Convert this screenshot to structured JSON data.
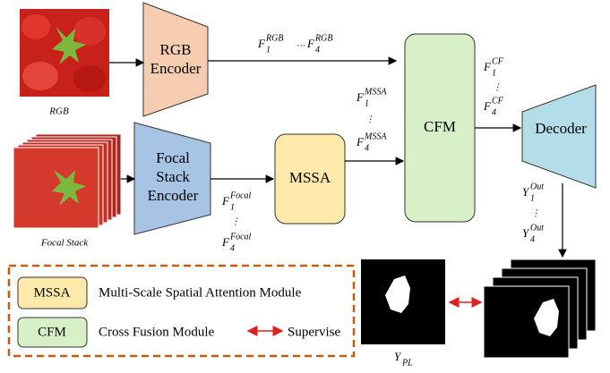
{
  "inputs": {
    "rgb_label": "RGB",
    "focal_label": "Focal Stack"
  },
  "nodes": {
    "rgb_encoder": [
      "RGB",
      "Encoder"
    ],
    "focal_encoder": [
      "Focal",
      "Stack",
      "Encoder"
    ],
    "mssa": "MSSA",
    "cfm": "CFM",
    "decoder": "Decoder"
  },
  "features": {
    "rgb": {
      "first": {
        "base": "F",
        "sub": "1",
        "sup": "RGB"
      },
      "ellipsis": "…",
      "last": {
        "base": "F",
        "sub": "4",
        "sup": "RGB"
      }
    },
    "focal": {
      "first": {
        "base": "F",
        "sub": "1",
        "sup": "Focal"
      },
      "ellipsis": "⋮",
      "last": {
        "base": "F",
        "sub": "4",
        "sup": "Focal"
      }
    },
    "mssa": {
      "first": {
        "base": "F",
        "sub": "1",
        "sup": "MSSA"
      },
      "ellipsis": "⋮",
      "last": {
        "base": "F",
        "sub": "4",
        "sup": "MSSA"
      }
    },
    "cf": {
      "first": {
        "base": "F",
        "sub": "1",
        "sup": "CF"
      },
      "ellipsis": "⋮",
      "last": {
        "base": "F",
        "sub": "4",
        "sup": "CF"
      }
    },
    "out": {
      "first": {
        "base": "Y",
        "sub": "1",
        "sup": "Out"
      },
      "ellipsis": "⋮",
      "last": {
        "base": "Y",
        "sub": "4",
        "sup": "Out"
      }
    }
  },
  "output": {
    "pseudo_label": {
      "base": "Y",
      "sub": "PL"
    }
  },
  "legend": {
    "items": [
      {
        "key": "MSSA",
        "desc": "Multi-Scale Spatial Attention Module"
      },
      {
        "key": "CFM",
        "desc": "Cross Fusion Module"
      }
    ],
    "supervise": "Supervise"
  }
}
